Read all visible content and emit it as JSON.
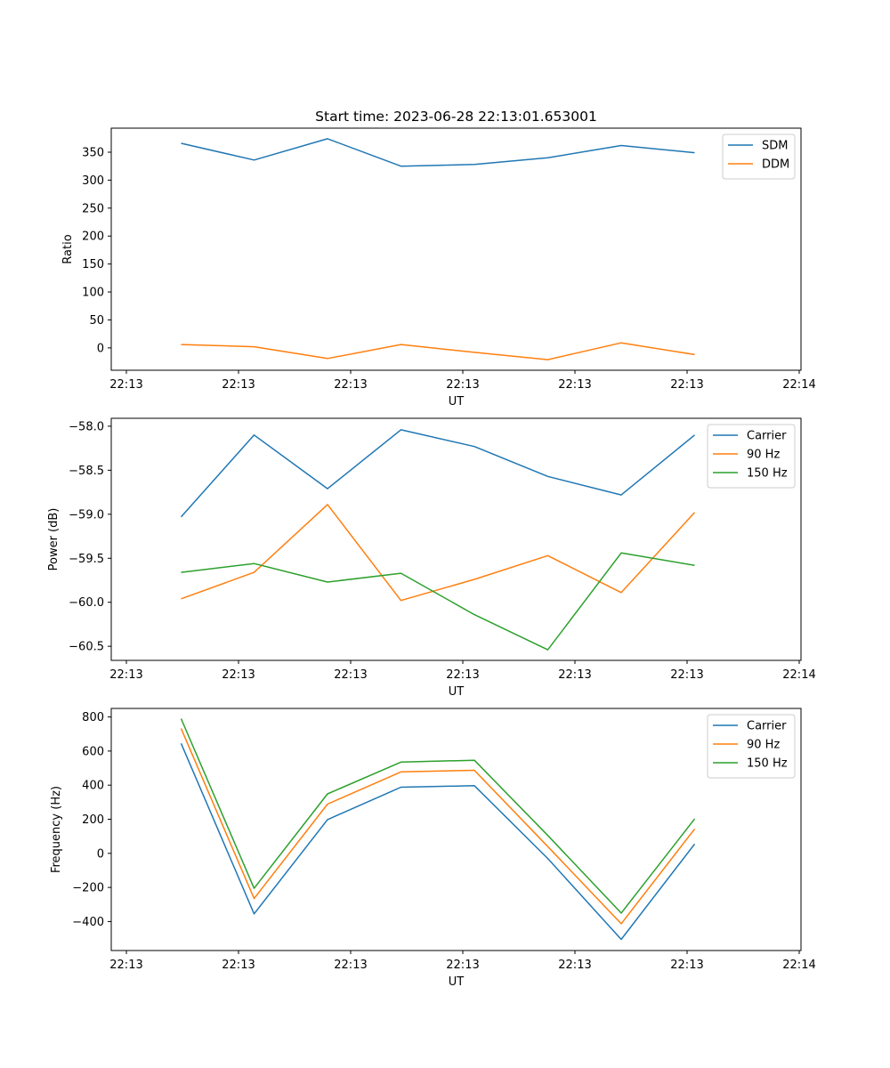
{
  "figure": {
    "title": "Start time: 2023-06-28 22:13:01.653001"
  },
  "chart_data": [
    {
      "type": "line",
      "title": "Start time: 2023-06-28 22:13:01.653001",
      "xlabel": "UT",
      "ylabel": "Ratio",
      "x_tick_labels": [
        "22:13",
        "22:13",
        "22:13",
        "22:13",
        "22:13",
        "22:13",
        "22:14"
      ],
      "y_ticks": [
        0,
        50,
        100,
        150,
        200,
        250,
        300,
        350
      ],
      "ylim": [
        -40,
        393
      ],
      "legend_position": "upper right",
      "grid": false,
      "series": [
        {
          "name": "SDM",
          "color": "#1f77b4",
          "values": [
            366,
            336,
            374,
            325,
            328,
            340,
            362,
            349
          ]
        },
        {
          "name": "DDM",
          "color": "#ff7f0e",
          "values": [
            6,
            2,
            -19,
            6,
            -8,
            -21,
            9,
            -12
          ]
        }
      ]
    },
    {
      "type": "line",
      "title": "",
      "xlabel": "UT",
      "ylabel": "Power (dB)",
      "x_tick_labels": [
        "22:13",
        "22:13",
        "22:13",
        "22:13",
        "22:13",
        "22:13",
        "22:14"
      ],
      "y_ticks": [
        -60.5,
        -60.0,
        -59.5,
        -59.0,
        -58.5,
        -58.0
      ],
      "y_tick_labels": [
        "−60.5",
        "−60.0",
        "−59.5",
        "−59.0",
        "−58.5",
        "−58.0"
      ],
      "ylim": [
        -60.66,
        -57.91
      ],
      "legend_position": "upper right",
      "grid": false,
      "series": [
        {
          "name": "Carrier",
          "color": "#1f77b4",
          "values": [
            -59.03,
            -58.1,
            -58.71,
            -58.04,
            -58.23,
            -58.57,
            -58.78,
            -58.1
          ]
        },
        {
          "name": "90 Hz",
          "color": "#ff7f0e",
          "values": [
            -59.96,
            -59.66,
            -58.89,
            -59.98,
            -59.74,
            -59.47,
            -59.89,
            -58.98
          ]
        },
        {
          "name": "150 Hz",
          "color": "#2ca02c",
          "values": [
            -59.66,
            -59.56,
            -59.77,
            -59.67,
            -60.14,
            -60.54,
            -59.44,
            -59.58
          ]
        }
      ]
    },
    {
      "type": "line",
      "title": "",
      "xlabel": "UT",
      "ylabel": "Frequency (Hz)",
      "x_tick_labels": [
        "22:13",
        "22:13",
        "22:13",
        "22:13",
        "22:13",
        "22:13",
        "22:14"
      ],
      "y_ticks": [
        -400,
        -200,
        0,
        200,
        400,
        600,
        800
      ],
      "y_tick_labels": [
        "−400",
        "−200",
        "0",
        "200",
        "400",
        "600",
        "800"
      ],
      "ylim": [
        -570,
        850
      ],
      "legend_position": "upper right",
      "grid": false,
      "series": [
        {
          "name": "Carrier",
          "color": "#1f77b4",
          "values": [
            645,
            -355,
            198,
            388,
            397,
            -30,
            -505,
            55
          ]
        },
        {
          "name": "90 Hz",
          "color": "#ff7f0e",
          "values": [
            732,
            -265,
            289,
            478,
            487,
            40,
            -413,
            143
          ]
        },
        {
          "name": "150 Hz",
          "color": "#2ca02c",
          "values": [
            790,
            -205,
            349,
            535,
            546,
            105,
            -350,
            202
          ]
        }
      ]
    }
  ]
}
